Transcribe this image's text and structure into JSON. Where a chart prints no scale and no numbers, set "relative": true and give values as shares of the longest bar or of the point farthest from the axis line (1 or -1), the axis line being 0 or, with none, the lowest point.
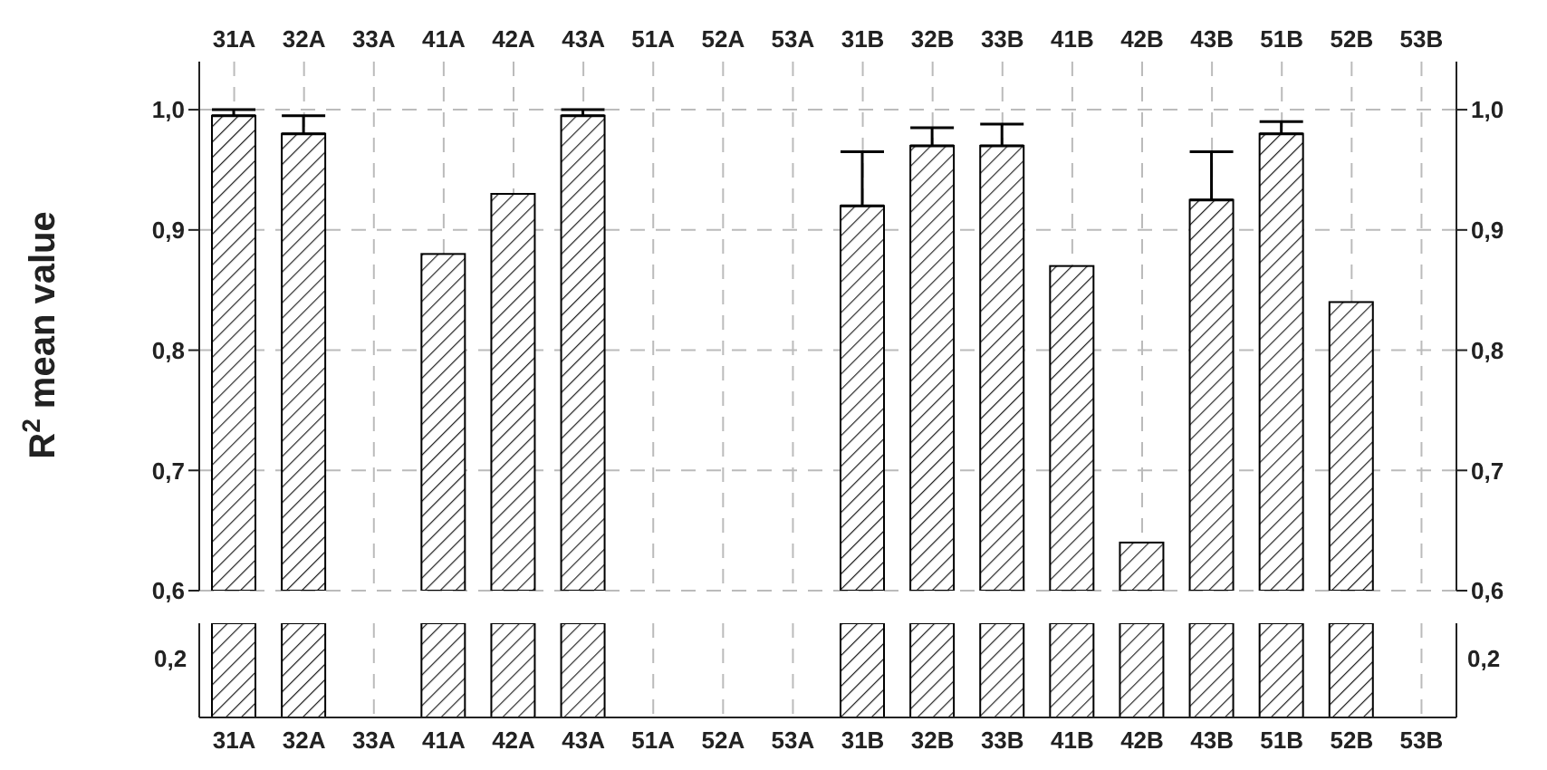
{
  "chart_data": [
    {
      "type": "bar",
      "ylabel": "R$^{2}$ mean value",
      "categories": [
        "31A",
        "32A",
        "33A",
        "41A",
        "42A",
        "43A",
        "51A",
        "52A",
        "53A",
        "31B",
        "32B",
        "33B",
        "41B",
        "42B",
        "43B",
        "51B",
        "52B",
        "53B"
      ],
      "values": [
        0.995,
        0.98,
        null,
        0.88,
        0.93,
        0.995,
        null,
        null,
        null,
        0.92,
        0.97,
        0.97,
        0.87,
        0.64,
        0.925,
        0.98,
        0.84,
        null
      ],
      "errors": [
        [
          0.995,
          1.0
        ],
        [
          0.98,
          0.995
        ],
        null,
        null,
        null,
        [
          0.995,
          1.0
        ],
        null,
        null,
        null,
        [
          0.92,
          0.965
        ],
        [
          0.97,
          0.985
        ],
        [
          0.97,
          0.988
        ],
        null,
        null,
        [
          0.925,
          0.965
        ],
        [
          0.98,
          0.99
        ],
        null,
        null
      ],
      "color": "#000000",
      "grid": true,
      "ylim": [
        0.6,
        1.04
      ],
      "yticks": [
        {
          "value": 0.6,
          "label": "0,6"
        },
        {
          "value": 0.7,
          "label": "0,7"
        },
        {
          "value": 0.8,
          "label": "0,8"
        },
        {
          "value": 0.9,
          "label": "0,9"
        },
        {
          "value": 1.0,
          "label": "1,0"
        }
      ],
      "y2lim": [
        0.6,
        1.04
      ],
      "y2ticks": [
        {
          "value": 0.6,
          "label": "0,6"
        },
        {
          "value": 0.7,
          "label": "0,7"
        },
        {
          "value": 0.8,
          "label": "0,8"
        },
        {
          "value": 0.9,
          "label": "0,9"
        },
        {
          "value": 1.0,
          "label": "1,0"
        }
      ]
    },
    {
      "type": "bar",
      "categories": [
        "31A",
        "32A",
        "33A",
        "41A",
        "42A",
        "43A",
        "51A",
        "52A",
        "53A",
        "31B",
        "32B",
        "33B",
        "41B",
        "42B",
        "43B",
        "51B",
        "52B",
        "53B"
      ],
      "values": [
        1,
        1,
        null,
        1,
        1,
        1,
        null,
        null,
        null,
        1,
        1,
        1,
        1,
        1,
        1,
        1,
        1,
        null
      ],
      "relative": true,
      "color": "#000000",
      "grid": "x",
      "annotations": [
        "0,2",
        "0,2"
      ]
    }
  ]
}
